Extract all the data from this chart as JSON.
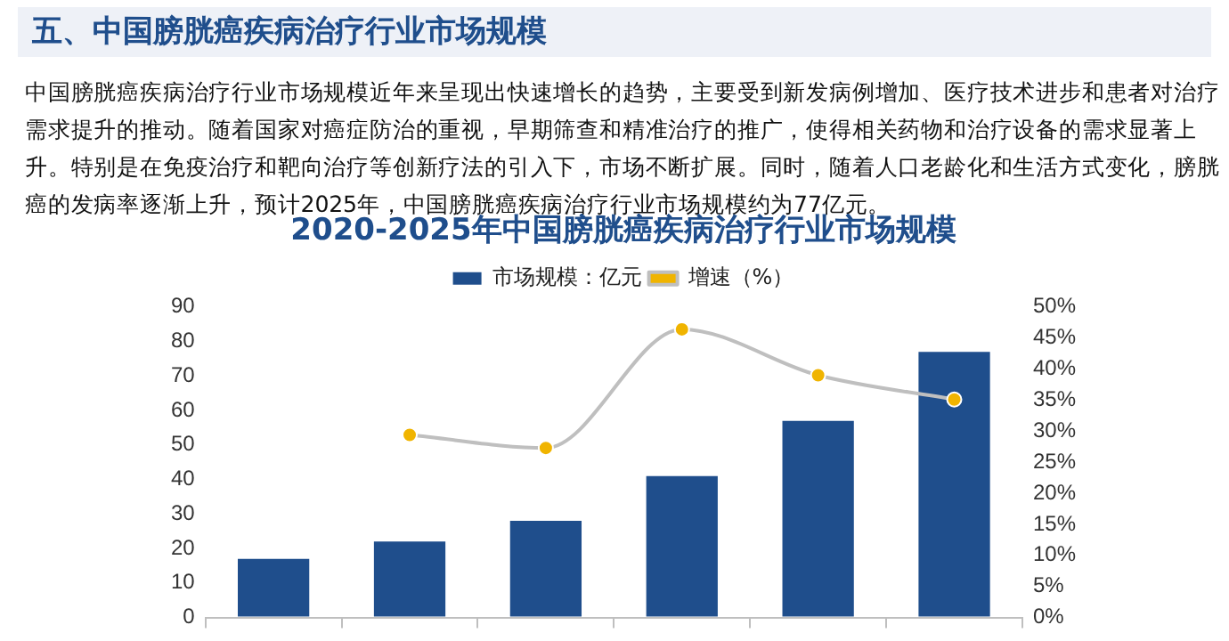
{
  "chart_data": {
    "type": "bar",
    "title": "2020-2025年中国膀胱癌疾病治疗行业市场规模",
    "annotations": [
      "五、中国膀胱癌疾病治疗行业市场规模",
      "中国膀胱癌疾病治疗行业市场规模近年来呈现出快速增长的趋势，主要受到新发病例增加、医疗技术进步和患者对治疗需求提升的推动。随着国家对癌症防治的重视，早期筛查和精准治疗的推广，使得相关药物和治疗设备的需求显著上升。特别是在免疫治疗和靶向治疗等创新疗法的引入下，市场不断扩展。同时，随着人口老龄化和生活方式变化，膀胱癌的发病率逐渐上升，预计2025年，中国膀胱癌疾病治疗行业市场规模约为77亿元。"
    ],
    "categories": [
      null,
      null,
      null,
      null,
      null,
      null
    ],
    "series": [
      {
        "name": "市场规模：亿元",
        "color": "#1f4e8c",
        "values": [
          17,
          22,
          28,
          41,
          57,
          77
        ]
      },
      {
        "name": "增速（%）",
        "type": "line",
        "axis": "y2",
        "color": "#bfbfbf",
        "values": [
          null,
          29.4,
          27.3,
          46.4,
          39.0,
          35.1
        ]
      }
    ],
    "ylim": [
      0,
      90
    ],
    "yticks": [
      0,
      10,
      20,
      30,
      40,
      50,
      60,
      70,
      80,
      90
    ],
    "y2lim": [
      0,
      50
    ],
    "y2ticks": [
      {
        "value": 0,
        "label": "0%"
      },
      {
        "value": 5,
        "label": "5%"
      },
      {
        "value": 10,
        "label": "10%"
      },
      {
        "value": 15,
        "label": "15%"
      },
      {
        "value": 20,
        "label": "20%"
      },
      {
        "value": 25,
        "label": "25%"
      },
      {
        "value": 30,
        "label": "30%"
      },
      {
        "value": 35,
        "label": "35%"
      },
      {
        "value": 40,
        "label": "40%"
      },
      {
        "value": 45,
        "label": "45%"
      },
      {
        "value": 50,
        "label": "50%"
      }
    ],
    "tick_labels": "y",
    "grid": false,
    "legend": "top",
    "marker": "circle",
    "line_style": "solid"
  }
}
